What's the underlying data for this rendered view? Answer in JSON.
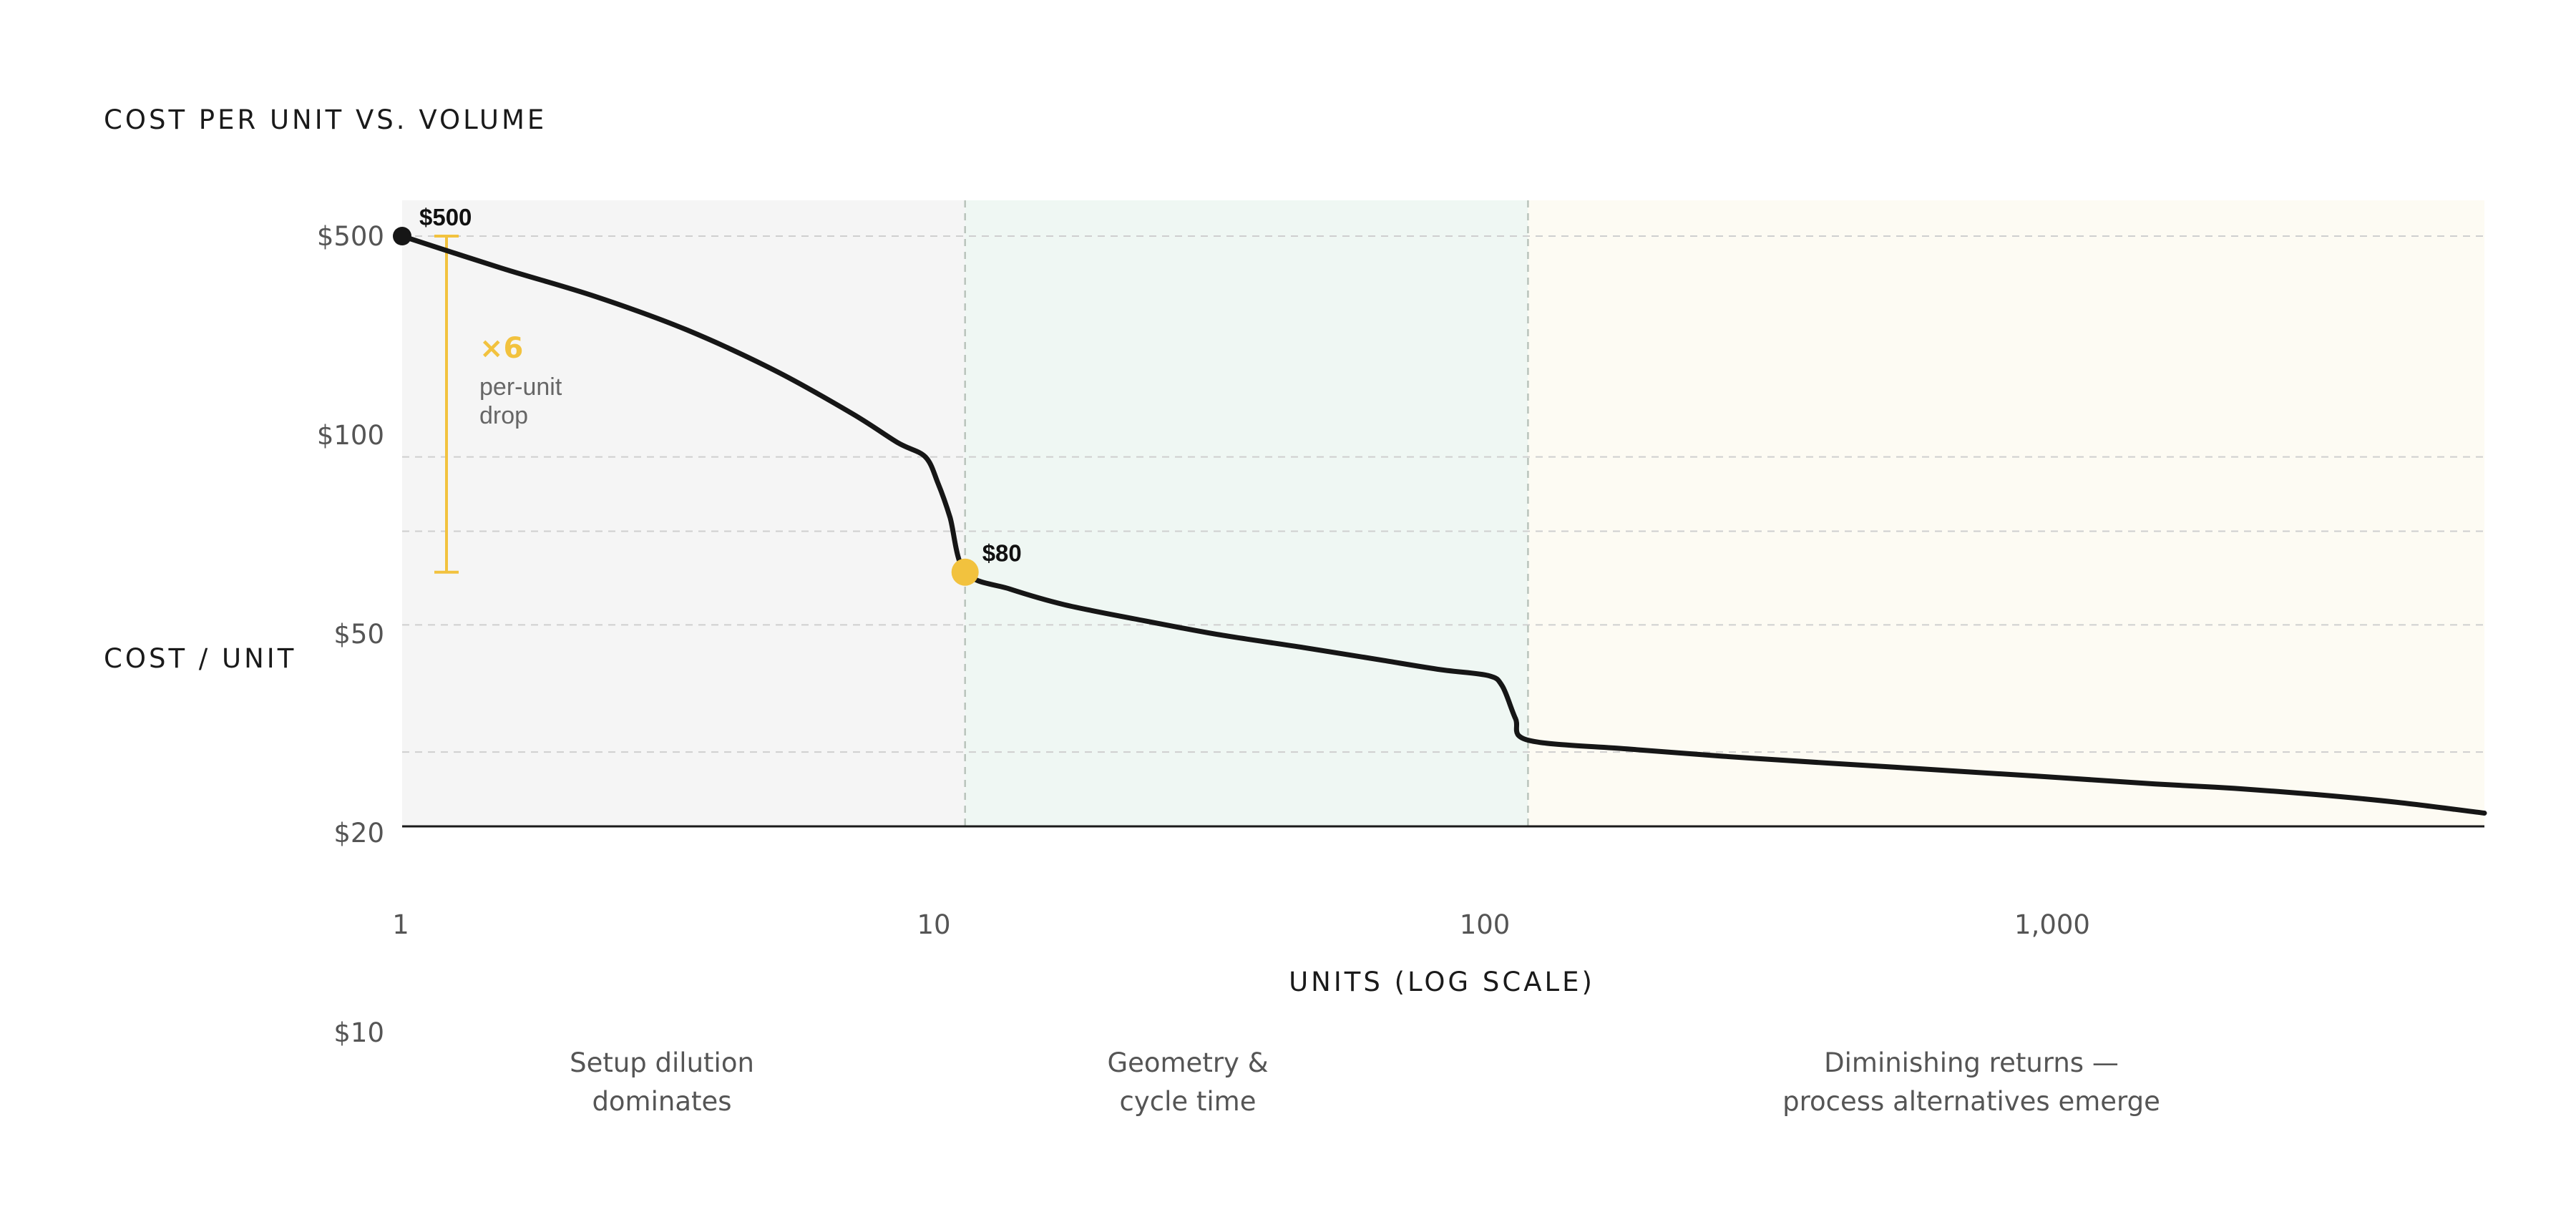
{
  "chart_data": {
    "type": "line",
    "title": "COST PER UNIT VS. VOLUME",
    "xlabel": "UNITS (LOG SCALE)",
    "ylabel": "COST / UNIT",
    "x_scale": "log",
    "y_scale": "log",
    "xlim": [
      1,
      5000
    ],
    "ylim": [
      20,
      500
    ],
    "grid": true,
    "x_ticks": [
      {
        "value": 1,
        "label": "1"
      },
      {
        "value": 10,
        "label": "10"
      },
      {
        "value": 100,
        "label": "100"
      },
      {
        "value": 1000,
        "label": "1,000"
      }
    ],
    "y_ticks": [
      {
        "value": 500,
        "label": "$500"
      },
      {
        "value": 100,
        "label": "$100"
      },
      {
        "value": 50,
        "label": "$50"
      },
      {
        "value": 20,
        "label": "$20"
      },
      {
        "value": 10,
        "label": "$10"
      }
    ],
    "y_gridlines": [
      500,
      150,
      100,
      60,
      30
    ],
    "series": [
      {
        "color": "#161616",
        "points": [
          [
            1,
            500
          ],
          [
            1.5,
            420
          ],
          [
            2.2,
            360
          ],
          [
            3.2,
            300
          ],
          [
            4.6,
            240
          ],
          [
            6.3,
            190
          ],
          [
            7.6,
            162
          ],
          [
            8.5,
            150
          ],
          [
            8.95,
            130
          ],
          [
            9.4,
            108
          ],
          [
            10,
            80
          ],
          [
            12,
            73
          ],
          [
            15,
            67
          ],
          [
            20,
            62
          ],
          [
            28,
            57
          ],
          [
            40,
            53
          ],
          [
            55,
            49.5
          ],
          [
            70,
            47
          ],
          [
            85,
            45.5
          ],
          [
            90,
            43
          ],
          [
            95,
            36
          ],
          [
            100,
            32
          ],
          [
            150,
            30.5
          ],
          [
            250,
            29
          ],
          [
            450,
            27.6
          ],
          [
            800,
            26.3
          ],
          [
            1300,
            25.2
          ],
          [
            1800,
            24.6
          ],
          [
            2500,
            23.8
          ],
          [
            3500,
            22.8
          ],
          [
            5000,
            21.5
          ]
        ]
      }
    ],
    "annotations": [
      {
        "x": 1,
        "y": 500,
        "label": "$500"
      },
      {
        "x": 10,
        "y": 80,
        "label": "$80"
      }
    ],
    "drop_annotation": {
      "from": 500,
      "to": 80,
      "factor_label": "×6",
      "caption_lines": [
        "per-unit",
        "drop"
      ],
      "color": "#F2C23E"
    },
    "regions": [
      {
        "x_start": 1,
        "x_end": 10,
        "fill": "#F5F5F5",
        "label_lines": [
          "Setup dilution",
          "dominates"
        ]
      },
      {
        "x_start": 10,
        "x_end": 100,
        "fill": "#EFF7F3",
        "label_lines": [
          "Geometry &",
          "cycle time"
        ]
      },
      {
        "x_start": 100,
        "x_end": 5000,
        "fill": "#FDFBF3",
        "label_lines": [
          "Diminishing returns —",
          "process alternatives emerge"
        ]
      }
    ]
  }
}
